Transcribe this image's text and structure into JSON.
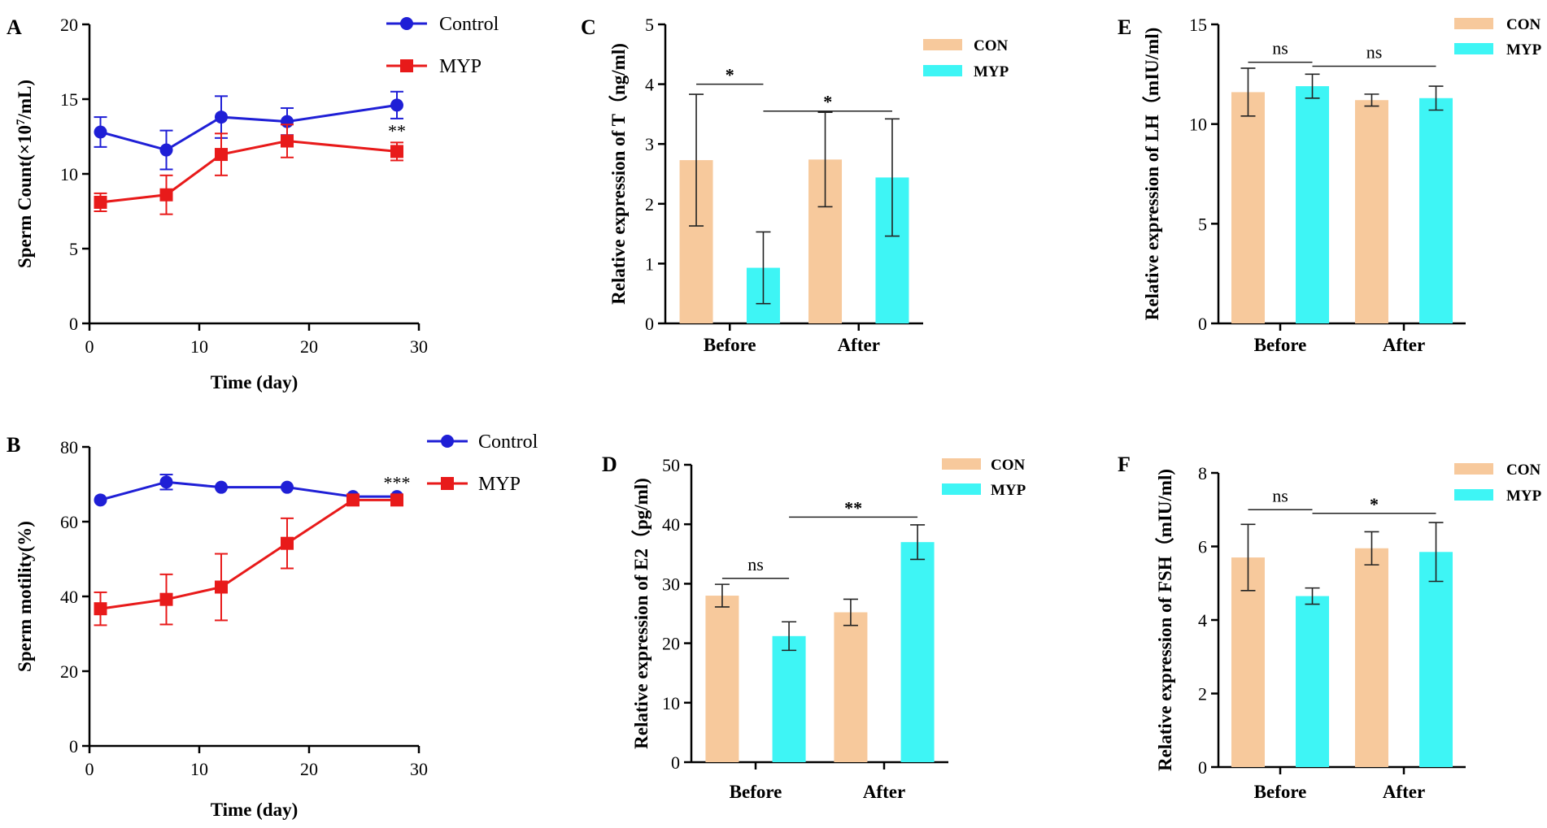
{
  "figure": {
    "colors": {
      "control": "#1f1fd6",
      "myp": "#e81a1a",
      "con": "#f7c99c",
      "myp_bar": "#3ef5f5",
      "axis": "#000000"
    }
  },
  "chart_data": [
    {
      "id": "A",
      "type": "line",
      "panel_label": "A",
      "xlabel": "Time (day)",
      "ylabel_prefix": "Sperm Count(×10",
      "ylabel_sup": "7",
      "ylabel_suffix": "/mL)",
      "xlim": [
        0,
        30
      ],
      "ylim": [
        0,
        20
      ],
      "xticks": [
        0,
        10,
        20,
        30
      ],
      "xtick_labels": [
        "0",
        "10",
        "20",
        "30"
      ],
      "yticks": [
        0,
        5,
        10,
        15,
        20
      ],
      "ytick_labels": [
        "0",
        "5",
        "10",
        "15",
        "20"
      ],
      "legend_position": "top-right",
      "series": [
        {
          "name": "Control",
          "marker": "circle",
          "x": [
            1,
            7,
            12,
            18,
            28
          ],
          "values": [
            12.8,
            11.6,
            13.8,
            13.5,
            14.6
          ],
          "err": [
            1.0,
            1.3,
            1.4,
            0.9,
            0.9
          ]
        },
        {
          "name": "MYP",
          "marker": "square",
          "x": [
            1,
            7,
            12,
            18,
            28
          ],
          "values": [
            8.1,
            8.6,
            11.3,
            12.2,
            11.5
          ],
          "err": [
            0.6,
            1.3,
            1.4,
            1.1,
            0.6
          ]
        }
      ],
      "annotations": [
        {
          "text": "**",
          "x": 28,
          "y": 12.9
        }
      ]
    },
    {
      "id": "B",
      "type": "line",
      "panel_label": "B",
      "xlabel": "Time (day)",
      "ylabel": "Sperm motility(%)",
      "xlim": [
        0,
        30
      ],
      "ylim": [
        0,
        80
      ],
      "xticks": [
        0,
        10,
        20,
        30
      ],
      "xtick_labels": [
        "0",
        "10",
        "20",
        "30"
      ],
      "yticks": [
        0,
        20,
        40,
        60,
        80
      ],
      "ytick_labels": [
        "0",
        "20",
        "40",
        "60",
        "80"
      ],
      "legend_position": "top-right",
      "series": [
        {
          "name": "Control",
          "marker": "circle",
          "x": [
            1,
            7,
            12,
            18,
            24,
            28
          ],
          "values": [
            65.8,
            70.6,
            69.2,
            69.2,
            66.7,
            66.7
          ],
          "err": [
            0,
            2.0,
            0,
            0,
            0,
            0
          ]
        },
        {
          "name": "MYP",
          "marker": "square",
          "x": [
            1,
            7,
            12,
            18,
            24,
            28
          ],
          "values": [
            36.7,
            39.2,
            42.5,
            54.2,
            65.8,
            65.8
          ],
          "err": [
            4.4,
            6.7,
            8.9,
            6.7,
            0.8,
            0.8
          ]
        }
      ],
      "annotations": [
        {
          "text": "***",
          "x": 28,
          "y": 70.5
        }
      ]
    },
    {
      "id": "C",
      "type": "bar",
      "panel_label": "C",
      "ylabel": "Relative expression of T（ng/ml)",
      "categories": [
        "Before",
        "After"
      ],
      "ylim": [
        0,
        5
      ],
      "yticks": [
        0,
        1,
        2,
        3,
        4,
        5
      ],
      "ytick_labels": [
        "0",
        "1",
        "2",
        "3",
        "4",
        "5"
      ],
      "legend_position": "top-right",
      "series": [
        {
          "name": "CON",
          "values": [
            2.73,
            2.74
          ],
          "err": [
            1.1,
            0.79
          ]
        },
        {
          "name": "MYP",
          "values": [
            0.93,
            2.44
          ],
          "err": [
            0.6,
            0.98
          ]
        }
      ],
      "significance": [
        {
          "text": "*",
          "from": [
            0,
            0
          ],
          "to": [
            0,
            1
          ],
          "y": 4.0
        },
        {
          "text": "*",
          "from": [
            0,
            1
          ],
          "to": [
            1,
            1
          ],
          "y": 3.55
        }
      ]
    },
    {
      "id": "D",
      "type": "bar",
      "panel_label": "D",
      "ylabel": "Relative expression of E2（pg/ml)",
      "categories": [
        "Before",
        "After"
      ],
      "ylim": [
        0,
        50
      ],
      "yticks": [
        0,
        10,
        20,
        30,
        40,
        50
      ],
      "ytick_labels": [
        "0",
        "10",
        "20",
        "30",
        "40",
        "50"
      ],
      "legend_position": "top-right",
      "series": [
        {
          "name": "CON",
          "values": [
            28.0,
            25.2
          ],
          "err": [
            1.9,
            2.2
          ]
        },
        {
          "name": "MYP",
          "values": [
            21.2,
            37.0
          ],
          "err": [
            2.4,
            2.9
          ]
        }
      ],
      "significance": [
        {
          "text": "ns",
          "from": [
            0,
            0
          ],
          "to": [
            0,
            1
          ],
          "y": 30.9
        },
        {
          "text": "**",
          "from": [
            0,
            1
          ],
          "to": [
            1,
            1
          ],
          "y": 41.2
        }
      ]
    },
    {
      "id": "E",
      "type": "bar",
      "panel_label": "E",
      "ylabel": "Relative expression of LH（mIU/ml)",
      "categories": [
        "Before",
        "After"
      ],
      "ylim": [
        0,
        15
      ],
      "yticks": [
        0,
        5,
        10,
        15
      ],
      "ytick_labels": [
        "0",
        "5",
        "10",
        "15"
      ],
      "legend_position": "top-right",
      "series": [
        {
          "name": "CON",
          "values": [
            11.6,
            11.2
          ],
          "err": [
            1.2,
            0.3
          ]
        },
        {
          "name": "MYP",
          "values": [
            11.9,
            11.3
          ],
          "err": [
            0.6,
            0.6
          ]
        }
      ],
      "significance": [
        {
          "text": "ns",
          "from": [
            0,
            0
          ],
          "to": [
            0,
            1
          ],
          "y": 13.1
        },
        {
          "text": "ns",
          "from": [
            0,
            1
          ],
          "to": [
            1,
            1
          ],
          "y": 12.9
        }
      ]
    },
    {
      "id": "F",
      "type": "bar",
      "panel_label": "F",
      "ylabel": "Relative expression of FSH（mIU/ml)",
      "categories": [
        "Before",
        "After"
      ],
      "ylim": [
        0,
        8
      ],
      "yticks": [
        0,
        2,
        4,
        6,
        8
      ],
      "ytick_labels": [
        "0",
        "2",
        "4",
        "6",
        "8"
      ],
      "legend_position": "top-right",
      "series": [
        {
          "name": "CON",
          "values": [
            5.7,
            5.95
          ],
          "err": [
            0.9,
            0.45
          ]
        },
        {
          "name": "MYP",
          "values": [
            4.65,
            5.85
          ],
          "err": [
            0.22,
            0.8
          ]
        }
      ],
      "significance": [
        {
          "text": "ns",
          "from": [
            0,
            0
          ],
          "to": [
            0,
            1
          ],
          "y": 7.0
        },
        {
          "text": "*",
          "from": [
            0,
            1
          ],
          "to": [
            1,
            1
          ],
          "y": 6.9
        }
      ]
    }
  ]
}
